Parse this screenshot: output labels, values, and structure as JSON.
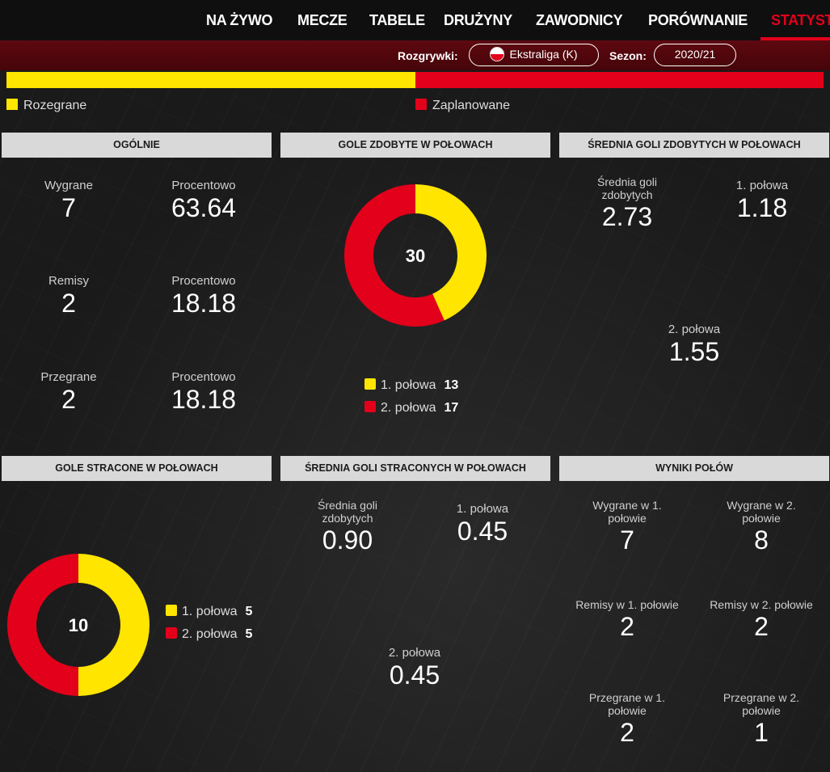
{
  "nav": {
    "items": [
      "NA ŻYWO",
      "MECZE",
      "TABELE",
      "DRUŻYNY",
      "ZAWODNICY",
      "PORÓWNANIE",
      "STATYST"
    ],
    "active_index": 6
  },
  "filters": {
    "competition_label": "Rozgrywki:",
    "competition_value": "Ekstraliga (K)",
    "season_label": "Sezon:",
    "season_value": "2020/21"
  },
  "progress": {
    "played_fraction": 0.5,
    "played_label": "Rozegrane",
    "scheduled_label": "Zaplanowane"
  },
  "colors": {
    "first_half": "#ffe500",
    "second_half": "#e3001b",
    "accent": "#e3001b"
  },
  "panels": {
    "general": {
      "title": "OGÓLNIE",
      "wins_label": "Wygrane",
      "wins": "7",
      "wins_pct_label": "Procentowo",
      "wins_pct": "63.64",
      "draws_label": "Remisy",
      "draws": "2",
      "draws_pct_label": "Procentowo",
      "draws_pct": "18.18",
      "losses_label": "Przegrane",
      "losses": "2",
      "losses_pct_label": "Procentowo",
      "losses_pct": "18.18"
    },
    "goals_scored": {
      "title": "GOLE ZDOBYTE W POŁOWACH",
      "total": "30",
      "first_label": "1. połowa",
      "first_value": "13",
      "second_label": "2. połowa",
      "second_value": "17"
    },
    "avg_scored": {
      "title": "ŚREDNIA GOLI ZDOBYTYCH W POŁOWACH",
      "avg_label_1": "Średnia goli",
      "avg_label_2": "zdobytych",
      "avg_value": "2.73",
      "first_label": "1. połowa",
      "first_value": "1.18",
      "second_label": "2. połowa",
      "second_value": "1.55"
    },
    "goals_conceded": {
      "title": "GOLE STRACONE W POŁOWACH",
      "total": "10",
      "first_label": "1. połowa",
      "first_value": "5",
      "second_label": "2. połowa",
      "second_value": "5"
    },
    "avg_conceded": {
      "title": "ŚREDNIA GOLI STRACONYCH W POŁOWACH",
      "avg_label_1": "Średnia goli",
      "avg_label_2": "zdobytych",
      "avg_value": "0.90",
      "first_label": "1. połowa",
      "first_value": "0.45",
      "second_label": "2. połowa",
      "second_value": "0.45"
    },
    "half_results": {
      "title": "WYNIKI POŁÓW",
      "won1_label_1": "Wygrane w 1.",
      "won1_label_2": "połowie",
      "won1": "7",
      "won2_label_1": "Wygrane w 2.",
      "won2_label_2": "połowie",
      "won2": "8",
      "draw1_label": "Remisy w 1. połowie",
      "draw1": "2",
      "draw2_label": "Remisy w 2. połowie",
      "draw2": "2",
      "lost1_label_1": "Przegrane w 1.",
      "lost1_label_2": "połowie",
      "lost1": "2",
      "lost2_label_1": "Przegrane w 2.",
      "lost2_label_2": "połowie",
      "lost2": "1"
    }
  }
}
